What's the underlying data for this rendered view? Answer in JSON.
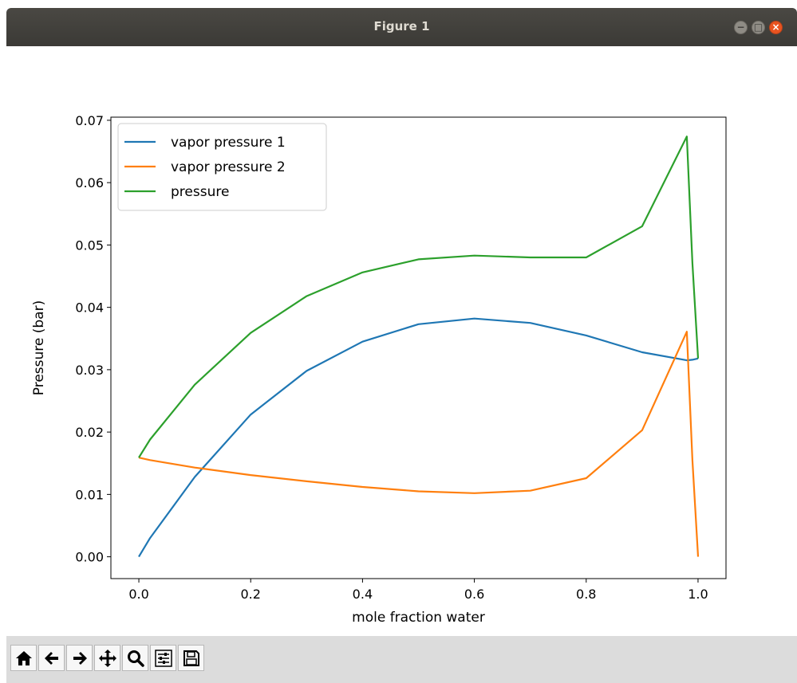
{
  "window": {
    "title": "Figure 1",
    "buttons": [
      "minimize",
      "maximize",
      "close"
    ]
  },
  "toolbar": {
    "buttons": [
      {
        "name": "home",
        "icon": "home-icon"
      },
      {
        "name": "back",
        "icon": "arrow-left-icon"
      },
      {
        "name": "forward",
        "icon": "arrow-right-icon"
      },
      {
        "name": "pan",
        "icon": "move-icon"
      },
      {
        "name": "zoom",
        "icon": "magnifier-icon"
      },
      {
        "name": "configure-subplots",
        "icon": "sliders-icon"
      },
      {
        "name": "save",
        "icon": "floppy-icon"
      }
    ]
  },
  "chart_data": {
    "type": "line",
    "title": "",
    "xlabel": "mole fraction water",
    "ylabel": "Pressure (bar)",
    "xlim": [
      -0.05,
      1.05
    ],
    "ylim": [
      -0.0035,
      0.0705
    ],
    "xticks": [
      0.0,
      0.2,
      0.4,
      0.6,
      0.8,
      1.0
    ],
    "xtick_labels": [
      "0.0",
      "0.2",
      "0.4",
      "0.6",
      "0.8",
      "1.0"
    ],
    "yticks": [
      0.0,
      0.01,
      0.02,
      0.03,
      0.04,
      0.05,
      0.06,
      0.07
    ],
    "ytick_labels": [
      "0.00",
      "0.01",
      "0.02",
      "0.03",
      "0.04",
      "0.05",
      "0.06",
      "0.07"
    ],
    "grid": false,
    "legend": "top-left",
    "series": [
      {
        "name": "vapor pressure 1",
        "color": "#1f77b4",
        "x": [
          0.0,
          0.02,
          0.1,
          0.2,
          0.3,
          0.4,
          0.5,
          0.6,
          0.7,
          0.8,
          0.9,
          0.98,
          0.99,
          1.0
        ],
        "y": [
          0.0,
          0.003,
          0.0128,
          0.0228,
          0.0298,
          0.0345,
          0.0373,
          0.0382,
          0.0375,
          0.0355,
          0.0328,
          0.0315,
          0.0316,
          0.0318
        ]
      },
      {
        "name": "vapor pressure 2",
        "color": "#ff7f0e",
        "x": [
          0.0,
          0.02,
          0.1,
          0.2,
          0.3,
          0.4,
          0.5,
          0.6,
          0.7,
          0.8,
          0.9,
          0.98,
          0.99,
          1.0
        ],
        "y": [
          0.0159,
          0.0155,
          0.0143,
          0.0131,
          0.0121,
          0.0112,
          0.0105,
          0.0102,
          0.0106,
          0.0126,
          0.0203,
          0.0361,
          0.0155,
          0.0
        ]
      },
      {
        "name": "pressure",
        "color": "#2ca02c",
        "x": [
          0.0,
          0.02,
          0.1,
          0.2,
          0.3,
          0.4,
          0.5,
          0.6,
          0.7,
          0.8,
          0.9,
          0.98,
          0.99,
          1.0
        ],
        "y": [
          0.0159,
          0.0188,
          0.0276,
          0.0359,
          0.0418,
          0.0456,
          0.0477,
          0.0483,
          0.048,
          0.048,
          0.053,
          0.0674,
          0.0471,
          0.0318
        ]
      }
    ]
  }
}
